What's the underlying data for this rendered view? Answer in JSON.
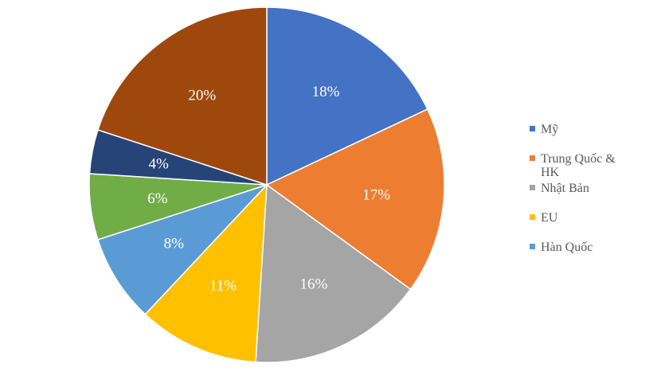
{
  "chart_data": {
    "type": "pie",
    "title": "",
    "start_angle_deg": 0,
    "direction": "clockwise",
    "slices": [
      {
        "label": "Mỹ",
        "value": 18,
        "display": "18%",
        "color": "#4472C4"
      },
      {
        "label": "Trung Quốc & HK",
        "value": 17,
        "display": "17%",
        "color": "#ED7D31"
      },
      {
        "label": "Nhật Bản",
        "value": 16,
        "display": "16%",
        "color": "#A5A5A5"
      },
      {
        "label": "EU",
        "value": 11,
        "display": "11%",
        "color": "#FFC000"
      },
      {
        "label": "Hàn Quốc",
        "value": 8,
        "display": "8%",
        "color": "#5B9BD5"
      },
      {
        "label": "",
        "value": 6,
        "display": "6%",
        "color": "#70AD47"
      },
      {
        "label": "",
        "value": 4,
        "display": "4%",
        "color": "#264478"
      },
      {
        "label": "",
        "value": 20,
        "display": "20%",
        "color": "#9E480E"
      }
    ],
    "legend": {
      "placement": "right",
      "entries": [
        {
          "lines": [
            "Mỹ"
          ],
          "color": "#4472C4"
        },
        {
          "lines": [
            "Trung Quốc &",
            "HK"
          ],
          "color": "#ED7D31"
        },
        {
          "lines": [
            "Nhật Bản"
          ],
          "color": "#A5A5A5"
        },
        {
          "lines": [
            "EU"
          ],
          "color": "#FFC000"
        },
        {
          "lines": [
            "Hàn Quốc"
          ],
          "color": "#5B9BD5"
        }
      ]
    }
  }
}
